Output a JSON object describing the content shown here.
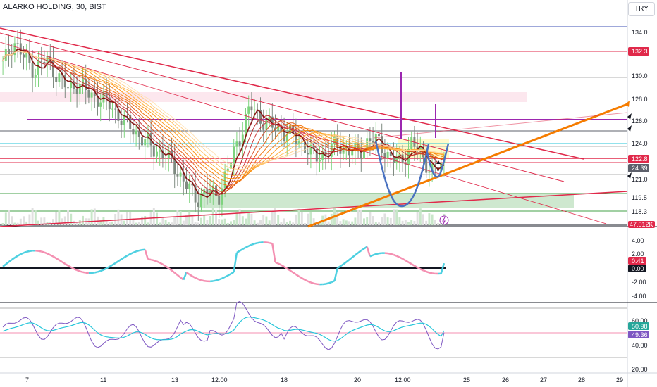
{
  "header": {
    "title": "ALARKO HOLDING, 30, BIST",
    "currency": "TRY"
  },
  "price_axis": {
    "ticks": [
      "134.0",
      "130.0",
      "128.0",
      "126.0",
      "124.0",
      "121.0",
      "119.5",
      "118.3"
    ],
    "tags": [
      {
        "label": "132.3",
        "color": "#e0294a"
      },
      {
        "label": "122.8",
        "color": "#e0294a"
      },
      {
        "label": "24:39",
        "color": "#5d606b"
      },
      {
        "label": "47.012K",
        "color": "#e0294a"
      },
      {
        "label": "0.00",
        "color": "#5d606b"
      }
    ]
  },
  "osc1_axis": {
    "ticks": [
      "4.00",
      "2.00",
      "-2.00",
      "-4.00"
    ],
    "tags": [
      {
        "label": "0.41",
        "color": "#e0294a"
      },
      {
        "label": "0.00",
        "color": "#131722"
      }
    ]
  },
  "osc2_axis": {
    "ticks": [
      "60.00",
      "40.00",
      "20.00"
    ],
    "tags": [
      {
        "label": "50.98",
        "color": "#26a69a"
      },
      {
        "label": "49.36",
        "color": "#7e57c2"
      }
    ]
  },
  "time_axis": {
    "ticks": [
      "7",
      "11",
      "13",
      "12:00",
      "18",
      "20",
      "12:00",
      "25",
      "26",
      "27",
      "28",
      "29"
    ]
  },
  "colors": {
    "candle_up": "#7ed37e",
    "candle_down": "#7e8a80",
    "trend_red": "#e0294a",
    "trend_orange": "#f57c00",
    "purple": "#9c27b0",
    "cup_blue": "#4a72c0",
    "zone_green": "#a5d6a7"
  },
  "chart_data": {
    "type": "line",
    "title": "ALARKO HOLDING, 30, BIST",
    "x_ticks": [
      "7",
      "11",
      "13",
      "12:00",
      "18",
      "20",
      "12:00",
      "25",
      "26",
      "27",
      "28",
      "29"
    ],
    "price_range": [
      117.5,
      135.0
    ],
    "price_series": [
      131,
      133,
      131.5,
      130.5,
      131.5,
      130.2,
      129,
      129.5,
      128.5,
      128.2,
      127.6,
      126.5,
      125.7,
      124.8,
      124.0,
      123.5,
      122.5,
      121.0,
      119.8,
      120.5,
      120.0,
      122.5,
      125.0,
      127.5,
      126.5,
      125.8,
      125.5,
      125.0,
      124.3,
      123.2,
      123.7,
      124.3,
      124.0,
      123.5,
      124.8,
      124.5,
      123.2,
      122.8,
      124.5,
      123.3,
      122.0,
      122.8
    ],
    "horizontal_levels": [
      134.3,
      132.3,
      126.1,
      124.6,
      122.8,
      119.6
    ],
    "osc1": {
      "last": 0.41,
      "zero": 0.0,
      "range": [
        -4.5,
        5.0
      ]
    },
    "osc2": {
      "rsi": 49.36,
      "signal": 50.98,
      "range": [
        15,
        75
      ]
    }
  }
}
